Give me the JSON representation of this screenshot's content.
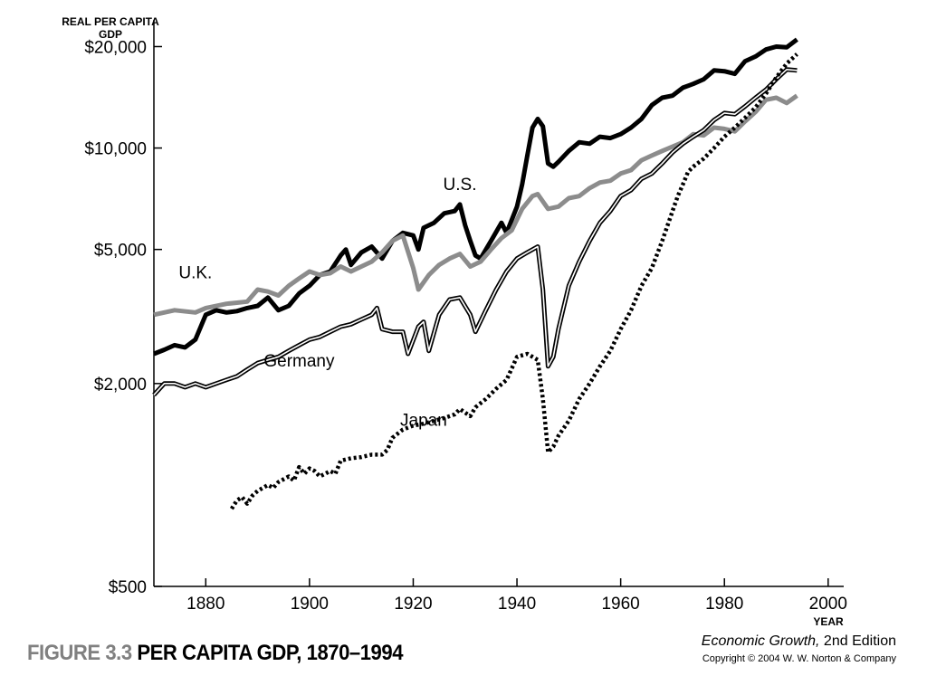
{
  "figure": {
    "number_label": "FIGURE 3.3",
    "title_label": "PER CAPITA GDP, 1870–1994",
    "book_title": "Economic Growth,",
    "book_edition": " 2nd Edition",
    "copyright": "Copyright © 2004 W. W. Norton & Company"
  },
  "chart_data": {
    "type": "line",
    "title": "PER CAPITA GDP, 1870–1994",
    "ylabel": "REAL PER CAPITA GDP",
    "xlabel": "YEAR",
    "yscale": "log",
    "xlim": [
      1870,
      2003
    ],
    "ylim": [
      500,
      24000
    ],
    "x_ticks": [
      1880,
      1900,
      1920,
      1940,
      1960,
      1980,
      2000
    ],
    "y_ticks": [
      {
        "value": 500,
        "label": "$500"
      },
      {
        "value": 2000,
        "label": "$2,000"
      },
      {
        "value": 5000,
        "label": "$5,000"
      },
      {
        "value": 10000,
        "label": "$10,000"
      },
      {
        "value": 20000,
        "label": "$20,000"
      }
    ],
    "grid": false,
    "legend": "inline-labels",
    "series": [
      {
        "name": "U.S.",
        "style": "solid-black-thick",
        "color": "#000000",
        "label_at": [
          1929,
          7500
        ],
        "points": [
          [
            1870,
            2450
          ],
          [
            1872,
            2520
          ],
          [
            1874,
            2600
          ],
          [
            1876,
            2560
          ],
          [
            1878,
            2700
          ],
          [
            1880,
            3200
          ],
          [
            1882,
            3300
          ],
          [
            1884,
            3250
          ],
          [
            1886,
            3280
          ],
          [
            1888,
            3350
          ],
          [
            1890,
            3400
          ],
          [
            1892,
            3600
          ],
          [
            1894,
            3300
          ],
          [
            1896,
            3400
          ],
          [
            1898,
            3700
          ],
          [
            1900,
            3900
          ],
          [
            1902,
            4200
          ],
          [
            1904,
            4300
          ],
          [
            1906,
            4800
          ],
          [
            1907,
            5000
          ],
          [
            1908,
            4500
          ],
          [
            1910,
            4900
          ],
          [
            1912,
            5100
          ],
          [
            1914,
            4700
          ],
          [
            1916,
            5300
          ],
          [
            1918,
            5600
          ],
          [
            1920,
            5500
          ],
          [
            1921,
            5000
          ],
          [
            1922,
            5800
          ],
          [
            1924,
            6000
          ],
          [
            1926,
            6400
          ],
          [
            1928,
            6500
          ],
          [
            1929,
            6800
          ],
          [
            1930,
            5900
          ],
          [
            1931,
            5300
          ],
          [
            1932,
            4800
          ],
          [
            1933,
            4700
          ],
          [
            1935,
            5300
          ],
          [
            1937,
            6000
          ],
          [
            1938,
            5600
          ],
          [
            1940,
            6700
          ],
          [
            1941,
            7800
          ],
          [
            1942,
            9500
          ],
          [
            1943,
            11500
          ],
          [
            1944,
            12200
          ],
          [
            1945,
            11600
          ],
          [
            1946,
            9000
          ],
          [
            1947,
            8800
          ],
          [
            1948,
            9100
          ],
          [
            1950,
            9800
          ],
          [
            1952,
            10400
          ],
          [
            1954,
            10300
          ],
          [
            1956,
            10800
          ],
          [
            1958,
            10700
          ],
          [
            1960,
            11000
          ],
          [
            1962,
            11500
          ],
          [
            1964,
            12200
          ],
          [
            1966,
            13400
          ],
          [
            1968,
            14100
          ],
          [
            1970,
            14300
          ],
          [
            1972,
            15100
          ],
          [
            1974,
            15500
          ],
          [
            1976,
            16000
          ],
          [
            1978,
            17000
          ],
          [
            1980,
            16900
          ],
          [
            1982,
            16600
          ],
          [
            1984,
            18100
          ],
          [
            1986,
            18700
          ],
          [
            1988,
            19600
          ],
          [
            1990,
            20000
          ],
          [
            1992,
            19900
          ],
          [
            1994,
            21000
          ]
        ]
      },
      {
        "name": "U.K.",
        "style": "solid-gray-thick",
        "color": "#8c8c8c",
        "label_at": [
          1878,
          4100
        ],
        "points": [
          [
            1870,
            3200
          ],
          [
            1874,
            3300
          ],
          [
            1878,
            3250
          ],
          [
            1880,
            3350
          ],
          [
            1884,
            3450
          ],
          [
            1888,
            3500
          ],
          [
            1890,
            3800
          ],
          [
            1892,
            3750
          ],
          [
            1894,
            3650
          ],
          [
            1896,
            3900
          ],
          [
            1898,
            4100
          ],
          [
            1900,
            4300
          ],
          [
            1902,
            4200
          ],
          [
            1904,
            4250
          ],
          [
            1906,
            4450
          ],
          [
            1908,
            4300
          ],
          [
            1910,
            4450
          ],
          [
            1912,
            4600
          ],
          [
            1914,
            4900
          ],
          [
            1916,
            5300
          ],
          [
            1918,
            5500
          ],
          [
            1920,
            4400
          ],
          [
            1921,
            3800
          ],
          [
            1923,
            4200
          ],
          [
            1925,
            4500
          ],
          [
            1927,
            4700
          ],
          [
            1929,
            4850
          ],
          [
            1931,
            4450
          ],
          [
            1933,
            4600
          ],
          [
            1935,
            5000
          ],
          [
            1937,
            5400
          ],
          [
            1939,
            5700
          ],
          [
            1941,
            6600
          ],
          [
            1943,
            7200
          ],
          [
            1944,
            7300
          ],
          [
            1946,
            6600
          ],
          [
            1948,
            6700
          ],
          [
            1950,
            7100
          ],
          [
            1952,
            7200
          ],
          [
            1954,
            7600
          ],
          [
            1956,
            7900
          ],
          [
            1958,
            8000
          ],
          [
            1960,
            8400
          ],
          [
            1962,
            8600
          ],
          [
            1964,
            9200
          ],
          [
            1966,
            9500
          ],
          [
            1968,
            9800
          ],
          [
            1970,
            10100
          ],
          [
            1972,
            10400
          ],
          [
            1974,
            11000
          ],
          [
            1976,
            10900
          ],
          [
            1978,
            11500
          ],
          [
            1980,
            11400
          ],
          [
            1982,
            11200
          ],
          [
            1984,
            12000
          ],
          [
            1986,
            12800
          ],
          [
            1988,
            13900
          ],
          [
            1990,
            14100
          ],
          [
            1992,
            13600
          ],
          [
            1994,
            14300
          ]
        ]
      },
      {
        "name": "Germany",
        "style": "double-line",
        "color": "#000000",
        "label_at": [
          1898,
          2250
        ],
        "points": [
          [
            1870,
            1850
          ],
          [
            1872,
            2000
          ],
          [
            1874,
            2000
          ],
          [
            1876,
            1950
          ],
          [
            1878,
            2000
          ],
          [
            1880,
            1950
          ],
          [
            1882,
            2000
          ],
          [
            1884,
            2050
          ],
          [
            1886,
            2100
          ],
          [
            1888,
            2200
          ],
          [
            1890,
            2300
          ],
          [
            1892,
            2350
          ],
          [
            1894,
            2400
          ],
          [
            1896,
            2500
          ],
          [
            1898,
            2600
          ],
          [
            1900,
            2700
          ],
          [
            1902,
            2750
          ],
          [
            1904,
            2850
          ],
          [
            1906,
            2950
          ],
          [
            1908,
            3000
          ],
          [
            1910,
            3100
          ],
          [
            1912,
            3200
          ],
          [
            1913,
            3350
          ],
          [
            1914,
            2900
          ],
          [
            1916,
            2850
          ],
          [
            1918,
            2850
          ],
          [
            1919,
            2450
          ],
          [
            1921,
            2950
          ],
          [
            1922,
            3050
          ],
          [
            1923,
            2500
          ],
          [
            1925,
            3200
          ],
          [
            1927,
            3550
          ],
          [
            1929,
            3600
          ],
          [
            1931,
            3200
          ],
          [
            1932,
            2850
          ],
          [
            1934,
            3300
          ],
          [
            1936,
            3800
          ],
          [
            1938,
            4300
          ],
          [
            1940,
            4700
          ],
          [
            1942,
            4900
          ],
          [
            1944,
            5100
          ],
          [
            1945,
            3800
          ],
          [
            1946,
            2250
          ],
          [
            1947,
            2400
          ],
          [
            1948,
            2900
          ],
          [
            1950,
            3900
          ],
          [
            1952,
            4600
          ],
          [
            1954,
            5300
          ],
          [
            1956,
            6000
          ],
          [
            1958,
            6500
          ],
          [
            1960,
            7200
          ],
          [
            1962,
            7500
          ],
          [
            1964,
            8100
          ],
          [
            1966,
            8400
          ],
          [
            1968,
            9000
          ],
          [
            1970,
            9700
          ],
          [
            1972,
            10300
          ],
          [
            1974,
            10800
          ],
          [
            1976,
            11300
          ],
          [
            1978,
            12100
          ],
          [
            1980,
            12700
          ],
          [
            1982,
            12600
          ],
          [
            1984,
            13300
          ],
          [
            1986,
            14100
          ],
          [
            1988,
            14900
          ],
          [
            1990,
            16000
          ],
          [
            1992,
            17100
          ],
          [
            1994,
            17000
          ]
        ]
      },
      {
        "name": "Japan",
        "style": "dotted-black-thick",
        "color": "#000000",
        "label_at": [
          1922,
          1500
        ],
        "points": [
          [
            1885,
            850
          ],
          [
            1886,
            900
          ],
          [
            1887,
            920
          ],
          [
            1888,
            880
          ],
          [
            1889,
            930
          ],
          [
            1890,
            960
          ],
          [
            1892,
            1000
          ],
          [
            1893,
            980
          ],
          [
            1894,
            1020
          ],
          [
            1896,
            1060
          ],
          [
            1897,
            1030
          ],
          [
            1898,
            1130
          ],
          [
            1899,
            1080
          ],
          [
            1900,
            1120
          ],
          [
            1901,
            1100
          ],
          [
            1902,
            1060
          ],
          [
            1904,
            1100
          ],
          [
            1905,
            1080
          ],
          [
            1906,
            1180
          ],
          [
            1908,
            1200
          ],
          [
            1910,
            1210
          ],
          [
            1912,
            1230
          ],
          [
            1914,
            1230
          ],
          [
            1915,
            1270
          ],
          [
            1916,
            1380
          ],
          [
            1918,
            1460
          ],
          [
            1920,
            1500
          ],
          [
            1922,
            1520
          ],
          [
            1924,
            1550
          ],
          [
            1926,
            1580
          ],
          [
            1928,
            1620
          ],
          [
            1929,
            1680
          ],
          [
            1931,
            1600
          ],
          [
            1932,
            1700
          ],
          [
            1934,
            1800
          ],
          [
            1936,
            1930
          ],
          [
            1938,
            2050
          ],
          [
            1940,
            2400
          ],
          [
            1942,
            2450
          ],
          [
            1944,
            2350
          ],
          [
            1945,
            1800
          ],
          [
            1946,
            1250
          ],
          [
            1947,
            1300
          ],
          [
            1948,
            1400
          ],
          [
            1950,
            1550
          ],
          [
            1952,
            1800
          ],
          [
            1954,
            2000
          ],
          [
            1956,
            2250
          ],
          [
            1958,
            2500
          ],
          [
            1960,
            2900
          ],
          [
            1962,
            3300
          ],
          [
            1964,
            3900
          ],
          [
            1966,
            4400
          ],
          [
            1968,
            5300
          ],
          [
            1970,
            6500
          ],
          [
            1971,
            7200
          ],
          [
            1972,
            7800
          ],
          [
            1973,
            8500
          ],
          [
            1974,
            8800
          ],
          [
            1976,
            9300
          ],
          [
            1978,
            10000
          ],
          [
            1980,
            10800
          ],
          [
            1982,
            11500
          ],
          [
            1984,
            12300
          ],
          [
            1986,
            13200
          ],
          [
            1988,
            14500
          ],
          [
            1990,
            16200
          ],
          [
            1992,
            17800
          ],
          [
            1994,
            19000
          ]
        ]
      }
    ]
  }
}
